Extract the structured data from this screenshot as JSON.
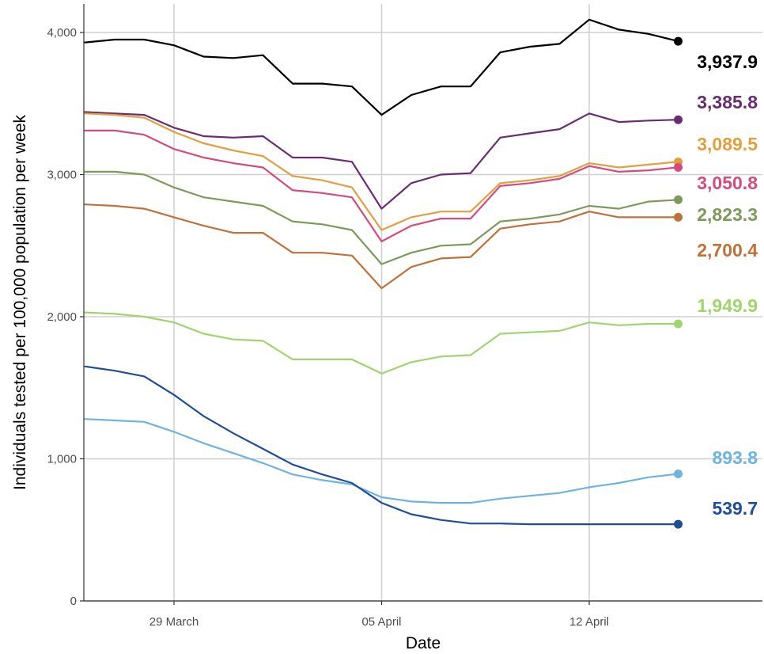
{
  "chart_data": {
    "type": "line",
    "xlabel": "Date",
    "ylabel": "Individuals tested per 100,000 population per week",
    "ylim": [
      0,
      4200
    ],
    "yticks": [
      0,
      1000,
      2000,
      3000,
      4000
    ],
    "ytick_labels": [
      "0",
      "1,000",
      "2,000",
      "3,000",
      "4,000"
    ],
    "xticks": [
      {
        "x": 4,
        "label": "29 March"
      },
      {
        "x": 11,
        "label": "05 April"
      },
      {
        "x": 18,
        "label": "12 April"
      }
    ],
    "xlim": [
      0,
      23
    ],
    "grid": true,
    "x": [
      1,
      2,
      3,
      4,
      5,
      6,
      7,
      8,
      9,
      10,
      11,
      12,
      13,
      14,
      15,
      16,
      17,
      18,
      19,
      20,
      21
    ],
    "series": [
      {
        "color": "#000000",
        "end_label": "3,937.9",
        "values": [
          3930,
          3950,
          3950,
          3910,
          3830,
          3820,
          3840,
          3640,
          3640,
          3620,
          3420,
          3560,
          3620,
          3620,
          3860,
          3900,
          3920,
          4090,
          4020,
          3990,
          3938
        ]
      },
      {
        "color": "#6a2c70",
        "end_label": "3,385.8",
        "values": [
          3440,
          3430,
          3420,
          3330,
          3270,
          3260,
          3270,
          3120,
          3120,
          3090,
          2760,
          2940,
          3000,
          3010,
          3260,
          3290,
          3320,
          3430,
          3370,
          3380,
          3386
        ]
      },
      {
        "color": "#e0a040",
        "end_label": "3,089.5",
        "values": [
          3430,
          3420,
          3400,
          3300,
          3220,
          3170,
          3130,
          2990,
          2960,
          2910,
          2610,
          2700,
          2740,
          2740,
          2940,
          2960,
          2990,
          3080,
          3050,
          3070,
          3090
        ]
      },
      {
        "color": "#d64a7c",
        "end_label": "3,050.8",
        "values": [
          3310,
          3310,
          3280,
          3180,
          3120,
          3080,
          3050,
          2890,
          2870,
          2840,
          2530,
          2640,
          2690,
          2690,
          2920,
          2940,
          2970,
          3060,
          3020,
          3030,
          3051
        ]
      },
      {
        "color": "#7e9a5a",
        "end_label": "2,823.3",
        "values": [
          3020,
          3020,
          3000,
          2910,
          2840,
          2810,
          2780,
          2670,
          2650,
          2610,
          2370,
          2450,
          2500,
          2510,
          2670,
          2690,
          2720,
          2780,
          2760,
          2810,
          2823
        ]
      },
      {
        "color": "#c0713a",
        "end_label": "2,700.4",
        "values": [
          2790,
          2780,
          2760,
          2700,
          2640,
          2590,
          2590,
          2450,
          2450,
          2430,
          2200,
          2350,
          2410,
          2420,
          2620,
          2650,
          2670,
          2740,
          2700,
          2700,
          2700
        ]
      },
      {
        "color": "#9fd46e",
        "end_label": "1,949.9",
        "values": [
          2030,
          2020,
          2000,
          1960,
          1880,
          1840,
          1830,
          1700,
          1700,
          1700,
          1600,
          1680,
          1720,
          1730,
          1880,
          1890,
          1900,
          1960,
          1940,
          1950,
          1950
        ]
      },
      {
        "color": "#6fb3e0",
        "end_label": "893.8",
        "values": [
          1280,
          1270,
          1260,
          1190,
          1110,
          1040,
          970,
          890,
          850,
          820,
          730,
          700,
          690,
          690,
          720,
          740,
          760,
          800,
          830,
          870,
          894
        ]
      },
      {
        "color": "#1f4e96",
        "end_label": "539.7",
        "values": [
          1650,
          1620,
          1580,
          1450,
          1300,
          1180,
          1070,
          960,
          890,
          830,
          690,
          610,
          570,
          545,
          545,
          540,
          540,
          540,
          540,
          540,
          540
        ]
      }
    ]
  }
}
